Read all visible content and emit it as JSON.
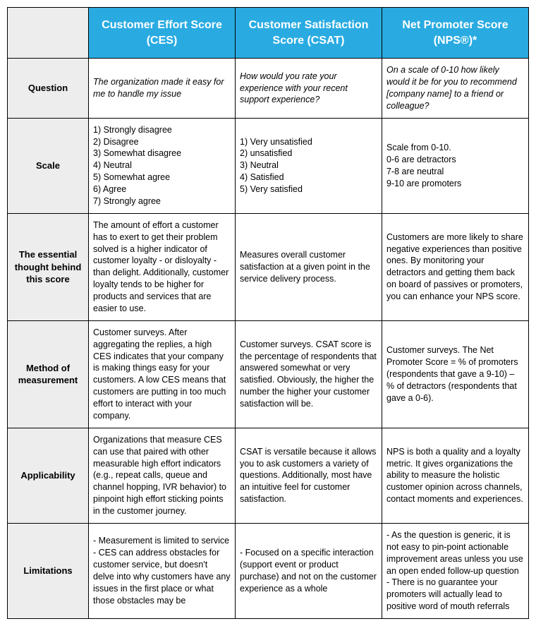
{
  "table": {
    "header_bg": "#29abe2",
    "header_text_color": "#ffffff",
    "row_header_bg": "#ededed",
    "border_color": "#000000",
    "columns": [
      "Customer Effort Score (CES)",
      "Customer Satisfaction Score (CSAT)",
      "Net Promoter Score (NPS®)*"
    ],
    "rows": [
      {
        "label": "Question",
        "italic": true,
        "cells": [
          "The organization made it easy for me to handle my issue",
          "How would you rate your experience with your recent support experience?",
          "On a scale of 0-10 how likely would it be for you to recommend [company name] to a friend or colleague?"
        ]
      },
      {
        "label": "Scale",
        "cells": [
          "1) Strongly disagree\n2) Disagree\n3) Somewhat disagree\n4) Neutral\n5) Somewhat agree\n6) Agree\n7) Strongly agree",
          "1) Very unsatisfied\n2) unsatisfied\n3) Neutral\n4) Satisfied\n5) Very satisfied",
          "Scale from 0-10.\n0-6 are detractors\n7-8 are neutral\n9-10 are promoters"
        ]
      },
      {
        "label": "The essential thought behind this score",
        "cells": [
          "The amount of effort a customer has to exert to get their problem solved is a higher indicator of customer loyalty - or disloyalty - than delight. Additionally, customer loyalty tends to be higher for products and services that are easier to use.",
          "Measures overall customer satisfaction at a given point in the service delivery process.",
          "Customers are more likely to share negative experiences than positive ones. By monitoring your detractors and getting them back on board of passives or promoters, you can enhance your NPS score."
        ]
      },
      {
        "label": "Method of measurement",
        "cells": [
          "Customer surveys. After aggregating the replies, a high CES indicates that your company is making things easy for your customers. A low CES means that customers are putting in too much effort to interact with your company.",
          "Customer surveys.  CSAT score is the percentage of respondents that answered somewhat or very satisfied. Obviously, the higher the number the higher your customer satisfaction will be.",
          "Customer surveys.  The Net Promoter Score = % of promoters (respondents that gave a  9-10) – % of detractors (respondents that gave a 0-6)."
        ]
      },
      {
        "label": "Applicability",
        "cells": [
          "Organizations that measure CES can use that paired with other measurable high effort indicators (e.g., repeat calls, queue and channel hopping, IVR behavior) to pinpoint high effort sticking points in the customer journey.",
          "CSAT is versatile because it allows you to ask customers a variety of questions. Additionally, most have an intuitive feel for customer satisfaction.",
          "NPS is both a quality and a loyalty metric. It gives organizations the ability to measure the holistic customer opinion across channels, contact moments and experiences."
        ]
      },
      {
        "label": "Limitations",
        "cells": [
          "- Measurement is limited to service\n- CES can address obstacles for customer service, but doesn't delve into why customers have any issues in the first place or what those obstacles may be",
          "- Focused on a specific interaction (support event or product purchase) and not on the customer experience as a whole",
          "- As the question is generic, it is not easy to pin-point actionable improvement areas unless you use an open ended follow-up question\n- There is no guarantee your promoters will actually lead to positive word of mouth referrals"
        ]
      }
    ]
  }
}
